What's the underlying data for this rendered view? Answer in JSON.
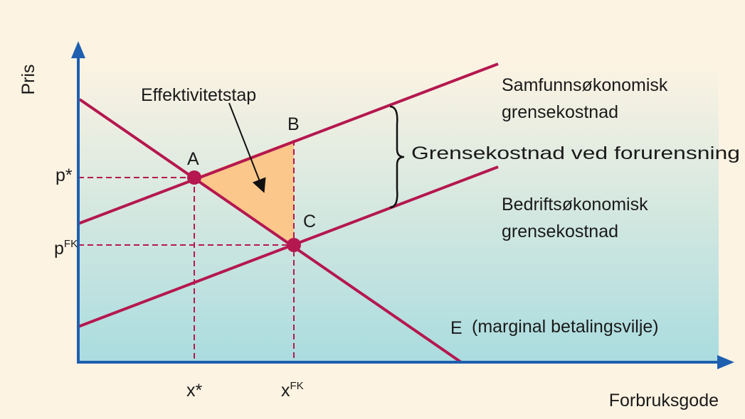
{
  "axes": {
    "y_label": "Pris",
    "x_label": "Forbruksgode"
  },
  "price_labels": [
    {
      "base": "p",
      "sup": "*"
    },
    {
      "base": "p",
      "sup": "FK"
    }
  ],
  "quantity_labels": [
    {
      "base": "x",
      "sup": "*"
    },
    {
      "base": "x",
      "sup": "FK"
    }
  ],
  "points": [
    "A",
    "B",
    "C"
  ],
  "annotation": "Effektivitetstap",
  "curves": {
    "social_cost": [
      "Samfunnsøkonomisk",
      "grensekostnad"
    ],
    "pollution_cost": "Grensekostnad ved forurensning",
    "private_cost": [
      "Bedriftsøkonomisk",
      "grensekostnad"
    ],
    "demand": {
      "letter": "E",
      "text": "(marginal betalingsvilje)"
    }
  }
}
